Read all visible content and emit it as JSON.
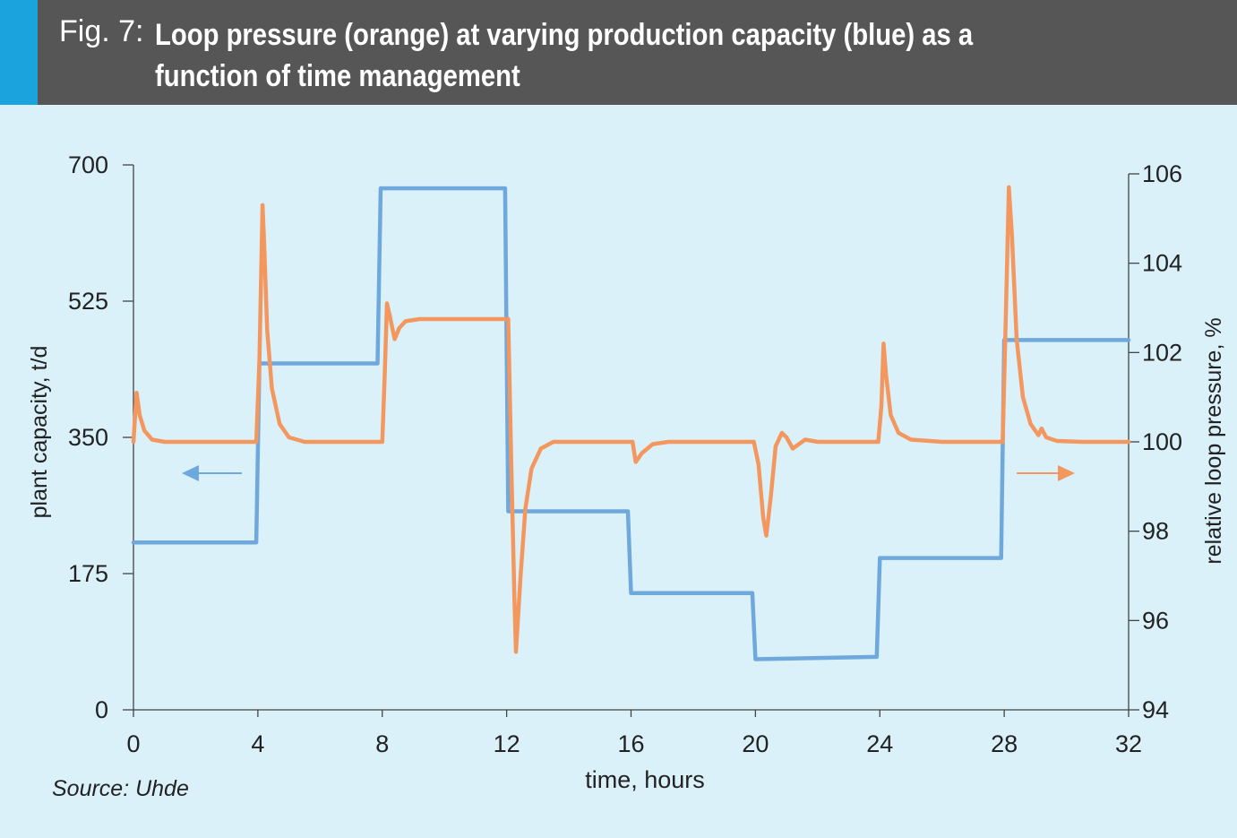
{
  "header": {
    "fig_label": "Fig. 7:",
    "title": "Loop pressure (orange) at varying production capacity (blue) as a function of time management",
    "accent_color": "#1aa3dd",
    "background_color": "#575656"
  },
  "source": "Source: Uhde",
  "colors": {
    "capacity": "#6fa8dc",
    "pressure": "#f4975e",
    "background": "#daf1fa"
  },
  "chart_data": {
    "type": "line",
    "xlabel": "time, hours",
    "ylabel_left": "plant capacity, t/d",
    "ylabel_right": "relative loop pressure, %",
    "xlim": [
      0,
      32
    ],
    "ylim_left": [
      0,
      700
    ],
    "ylim_right": [
      94,
      106
    ],
    "x_ticks": [
      0,
      4,
      8,
      12,
      16,
      20,
      24,
      28,
      32
    ],
    "y_left_ticks": [
      0,
      175,
      350,
      525,
      700
    ],
    "y_right_ticks": [
      94,
      96,
      98,
      100,
      102,
      104,
      106
    ],
    "grid": false,
    "series": [
      {
        "axis": "left",
        "color": "#6fa8dc",
        "x": [
          0,
          3.95,
          4.05,
          7.85,
          7.95,
          11.95,
          12.05,
          15.9,
          16.0,
          19.9,
          20.0,
          23.9,
          24.0,
          27.9,
          28.0,
          32
        ],
        "y": [
          215,
          215,
          445,
          445,
          670,
          670,
          255,
          255,
          150,
          150,
          65,
          68,
          195,
          195,
          475,
          475
        ]
      },
      {
        "axis": "right",
        "color": "#f4975e",
        "x": [
          0,
          0.1,
          0.2,
          0.35,
          0.6,
          1.0,
          3.95,
          4.05,
          4.15,
          4.2,
          4.3,
          4.45,
          4.7,
          5.0,
          5.5,
          8.0,
          8.08,
          8.15,
          8.25,
          8.4,
          8.55,
          8.75,
          9.2,
          10,
          11.9,
          12.05,
          12.15,
          12.25,
          12.3,
          12.45,
          12.6,
          12.8,
          13.1,
          13.5,
          14,
          15.9,
          16.05,
          16.15,
          16.35,
          16.7,
          17.2,
          19.95,
          20.1,
          20.25,
          20.35,
          20.5,
          20.65,
          20.85,
          21.0,
          21.2,
          21.6,
          22,
          23.95,
          24.05,
          24.12,
          24.2,
          24.35,
          24.6,
          25,
          26,
          27.95,
          28.05,
          28.15,
          28.25,
          28.4,
          28.6,
          28.85,
          29.1,
          29.2,
          29.35,
          29.7,
          30.5,
          32
        ],
        "y": [
          100,
          101.1,
          100.6,
          100.25,
          100.05,
          100,
          100,
          101.8,
          105.3,
          104.5,
          102.5,
          101.2,
          100.4,
          100.1,
          100,
          100,
          101.5,
          103.1,
          102.8,
          102.3,
          102.55,
          102.7,
          102.75,
          102.75,
          102.75,
          102.75,
          99.5,
          96.5,
          95.3,
          97,
          98.5,
          99.4,
          99.85,
          100,
          100,
          100,
          100,
          99.55,
          99.75,
          99.95,
          100,
          100,
          99.5,
          98.3,
          97.9,
          98.8,
          99.9,
          100.2,
          100.1,
          99.85,
          100.05,
          100,
          100,
          100.8,
          102.2,
          101.5,
          100.6,
          100.2,
          100.05,
          100,
          100,
          102.8,
          105.7,
          104.6,
          102.3,
          101,
          100.4,
          100.15,
          100.3,
          100.1,
          100.02,
          100,
          100
        ]
      }
    ],
    "annotations": [
      {
        "type": "arrow",
        "direction": "left",
        "color": "#6fa8dc",
        "meaning": "blue series uses left axis"
      },
      {
        "type": "arrow",
        "direction": "right",
        "color": "#f4975e",
        "meaning": "orange series uses right axis"
      }
    ]
  }
}
